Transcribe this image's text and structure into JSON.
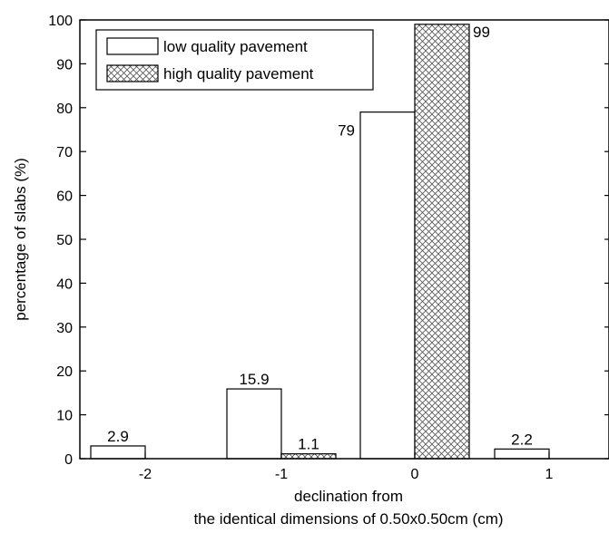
{
  "chart_data": {
    "type": "bar",
    "title": "",
    "xlabel": [
      "declination from",
      "the identical dimensions of 0.50x0.50cm (cm)"
    ],
    "ylabel": "percentage of slabs (%)",
    "categories": [
      "-2",
      "-1",
      "0",
      "1"
    ],
    "ylim": [
      0,
      100
    ],
    "yticks": [
      0,
      10,
      20,
      30,
      40,
      50,
      60,
      70,
      80,
      90,
      100
    ],
    "grid": false,
    "legend_position": "top-left",
    "series": [
      {
        "name": "low quality pavement",
        "fill": "none",
        "values": [
          2.9,
          15.9,
          79,
          2.2
        ],
        "labels": [
          "2.9",
          "15.9",
          "79",
          "2.2"
        ]
      },
      {
        "name": "high quality pavement",
        "fill": "crosshatch",
        "values": [
          0,
          1.1,
          99,
          0
        ],
        "labels": [
          "",
          "1.1",
          "99",
          ""
        ]
      }
    ]
  }
}
